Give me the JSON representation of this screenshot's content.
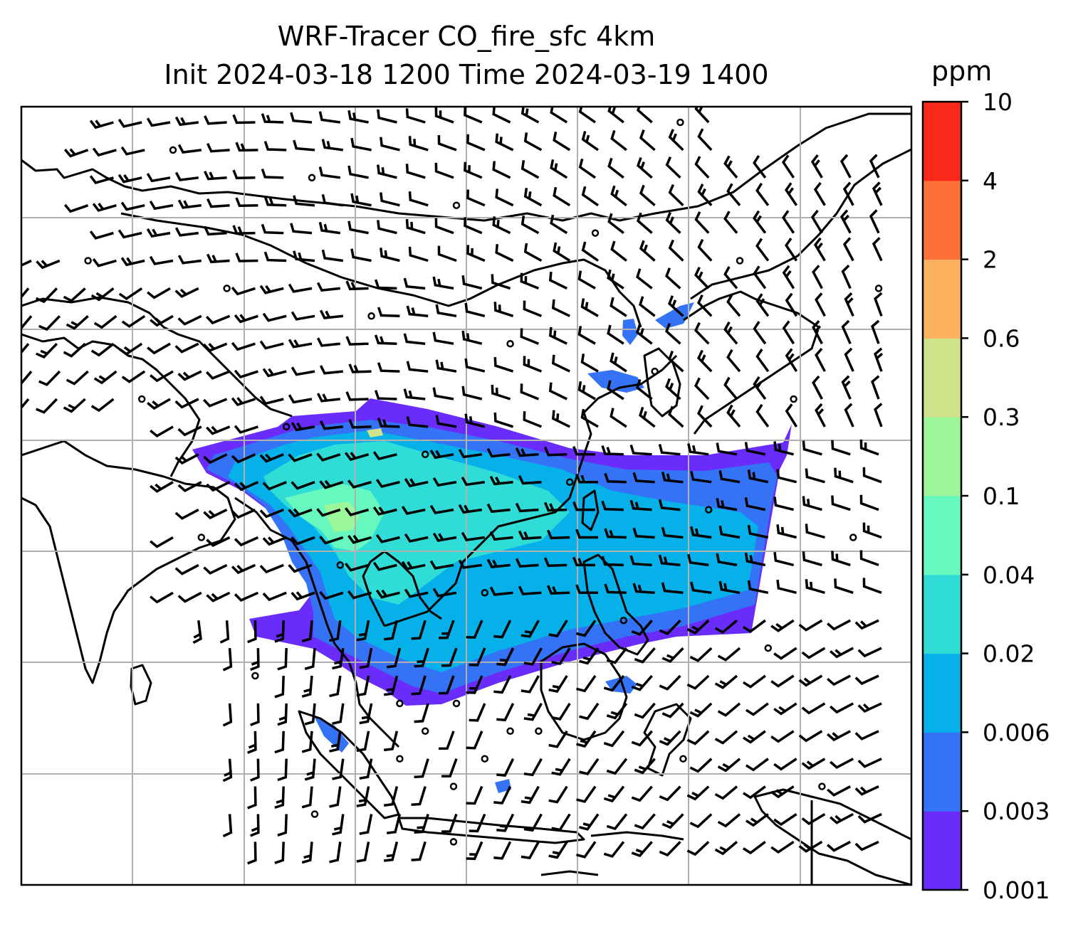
{
  "chart_data": {
    "type": "heatmap",
    "title_line1": "WRF-Tracer CO_fire_sfc 4km",
    "title_line2": "Init 2024-03-18 1200 Time 2024-03-19 1400",
    "colorbar": {
      "unit": "ppm",
      "ticks": [
        "0.001",
        "0.003",
        "0.006",
        "0.02",
        "0.04",
        "0.1",
        "0.3",
        "0.6",
        "2",
        "4",
        "10"
      ],
      "colors": [
        "#6a2cfb",
        "#3473f5",
        "#06b1ea",
        "#2fdcd6",
        "#67f8c0",
        "#9cf79a",
        "#d1e38a",
        "#fcb15f",
        "#fd7138",
        "#fb291b"
      ]
    },
    "grid": true,
    "overlays": [
      "coastlines",
      "country borders",
      "wind barbs"
    ]
  }
}
